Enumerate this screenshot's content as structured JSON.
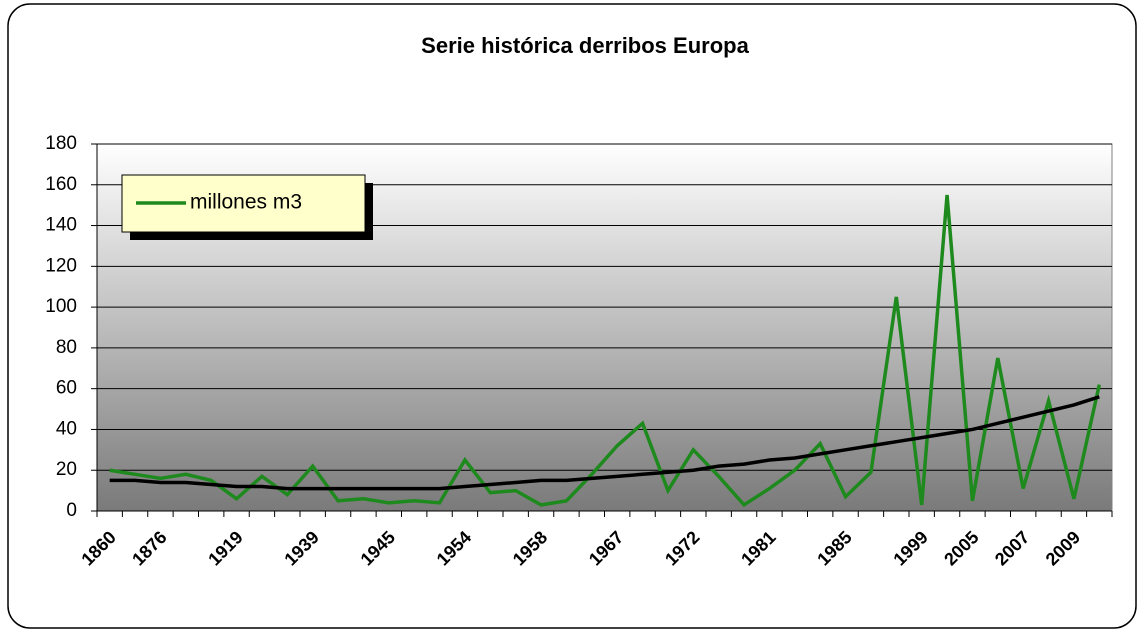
{
  "chart_data": {
    "type": "line",
    "title": "Serie histórica derribos Europa",
    "categories": [
      "1860",
      null,
      "1876",
      null,
      null,
      "1919",
      null,
      null,
      "1939",
      null,
      null,
      "1945",
      null,
      null,
      "1954",
      null,
      null,
      "1958",
      null,
      null,
      "1967",
      null,
      null,
      "1972",
      null,
      null,
      "1981",
      null,
      null,
      "1985",
      null,
      null,
      "1999",
      null,
      "2005",
      null,
      "2007",
      null,
      "2009",
      null
    ],
    "series": [
      {
        "name": "millones m3",
        "color": "#1e8a1e",
        "values": [
          20,
          18,
          16,
          18,
          15,
          6,
          17,
          8,
          22,
          5,
          6,
          4,
          5,
          4,
          25,
          9,
          10,
          3,
          5,
          18,
          32,
          43,
          10,
          30,
          17,
          3,
          11,
          20,
          33,
          7,
          19,
          105,
          3,
          155,
          5,
          75,
          11,
          54,
          6,
          62
        ]
      }
    ],
    "trendline": {
      "color": "#000000",
      "values": [
        15,
        15,
        14,
        14,
        13,
        12,
        12,
        11,
        11,
        11,
        11,
        11,
        11,
        11,
        12,
        13,
        14,
        15,
        15,
        16,
        17,
        18,
        19,
        20,
        22,
        23,
        25,
        26,
        28,
        30,
        32,
        34,
        36,
        38,
        40,
        43,
        46,
        49,
        52,
        56
      ]
    },
    "ylim": [
      0,
      180
    ],
    "yticks": [
      0,
      20,
      40,
      60,
      80,
      100,
      120,
      140,
      160,
      180
    ],
    "grid": true,
    "legend": "upper left"
  }
}
